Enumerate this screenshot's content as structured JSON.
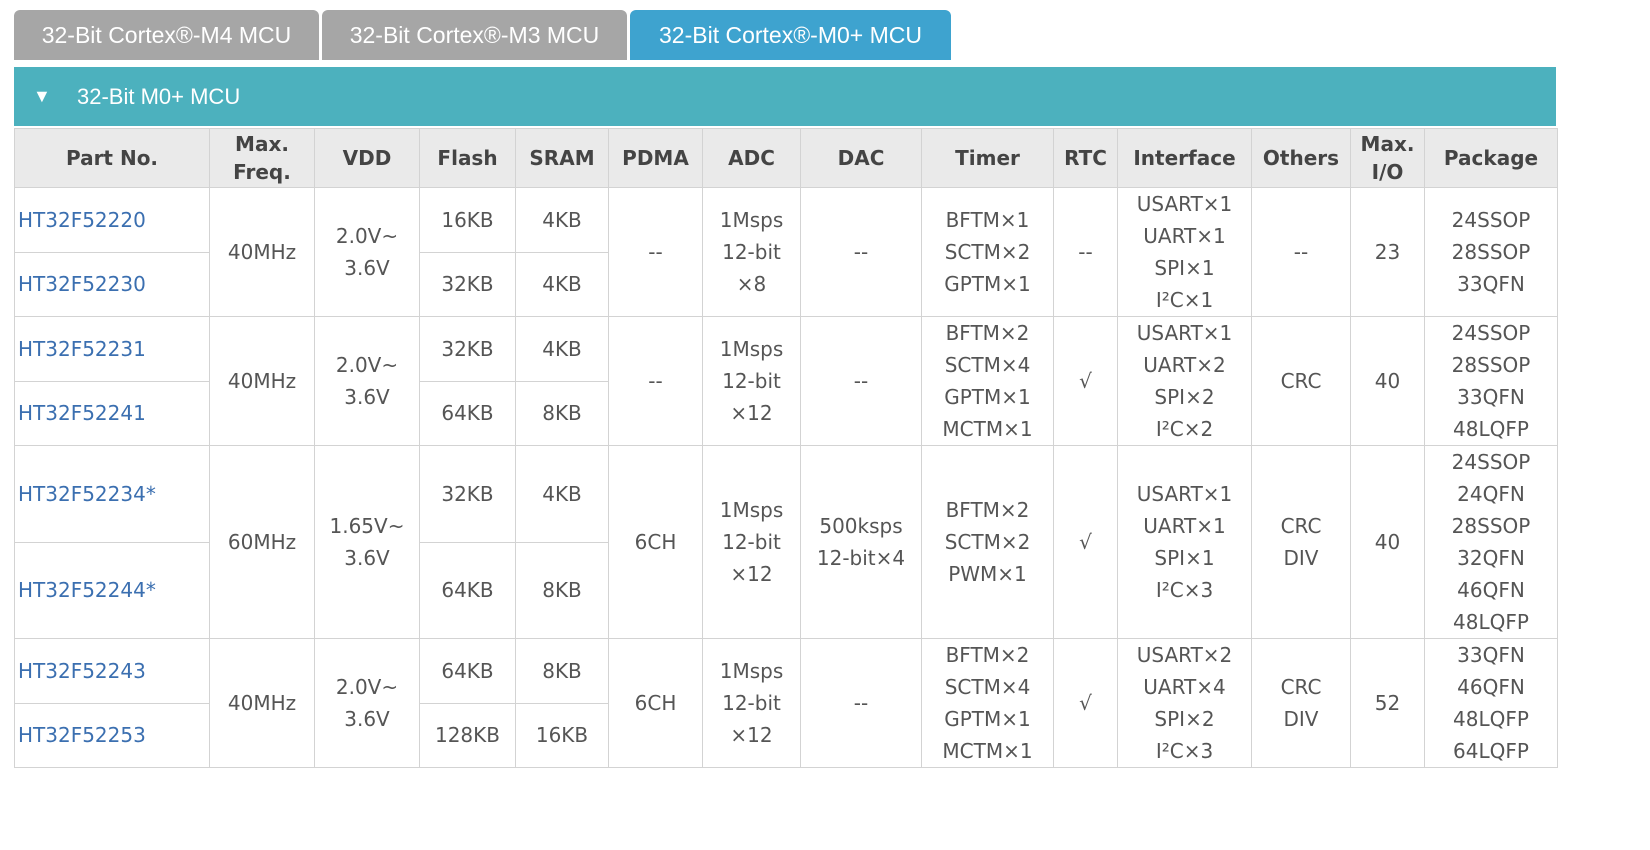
{
  "tabs": [
    {
      "label": "32-Bit Cortex®-M4 MCU",
      "active": false
    },
    {
      "label": "32-Bit Cortex®-M3 MCU",
      "active": false
    },
    {
      "label": "32-Bit Cortex®-M0+ MCU",
      "active": true
    }
  ],
  "section": {
    "icon": "triangle-down-icon",
    "title": "32-Bit M0+ MCU"
  },
  "colors": {
    "tab_active": "#3ea3cf",
    "tab_inactive": "#a6a6a6",
    "section_bar": "#4cb1be",
    "part_link": "#3b6fb0",
    "header_bg": "#eaeaea"
  },
  "table": {
    "headers": [
      "Part No.",
      "Max.\nFreq.",
      "VDD",
      "Flash",
      "SRAM",
      "PDMA",
      "ADC",
      "DAC",
      "Timer",
      "RTC",
      "Interface",
      "Others",
      "Max.\nI/O",
      "Package"
    ],
    "groups": [
      {
        "parts": [
          {
            "part": "HT32F52220",
            "flash": "16KB",
            "sram": "4KB"
          },
          {
            "part": "HT32F52230",
            "flash": "32KB",
            "sram": "4KB"
          }
        ],
        "freq": "40MHz",
        "vdd": "2.0V~\n3.6V",
        "pdma": "--",
        "adc": "1Msps\n12-bit\n×8",
        "dac": "--",
        "timer": "BFTM×1\nSCTM×2\nGPTM×1",
        "rtc": "--",
        "interface": "USART×1\nUART×1\nSPI×1\nI²C×1",
        "others": "--",
        "io": "23",
        "package": "24SSOP\n28SSOP\n33QFN"
      },
      {
        "parts": [
          {
            "part": "HT32F52231",
            "flash": "32KB",
            "sram": "4KB"
          },
          {
            "part": "HT32F52241",
            "flash": "64KB",
            "sram": "8KB"
          }
        ],
        "freq": "40MHz",
        "vdd": "2.0V~\n3.6V",
        "pdma": "--",
        "adc": "1Msps\n12-bit\n×12",
        "dac": "--",
        "timer": "BFTM×2\nSCTM×4\nGPTM×1\nMCTM×1",
        "rtc": "√",
        "interface": "USART×1\nUART×2\nSPI×2\nI²C×2",
        "others": "CRC",
        "io": "40",
        "package": "24SSOP\n28SSOP\n33QFN\n48LQFP"
      },
      {
        "parts": [
          {
            "part": "HT32F52234*",
            "flash": "32KB",
            "sram": "4KB"
          },
          {
            "part": "HT32F52244*",
            "flash": "64KB",
            "sram": "8KB"
          }
        ],
        "freq": "60MHz",
        "vdd": "1.65V~\n3.6V",
        "pdma": "6CH",
        "adc": "1Msps\n12-bit\n×12",
        "dac": "500ksps\n12-bit×4",
        "timer": "BFTM×2\nSCTM×2\nPWM×1",
        "rtc": "√",
        "interface": "USART×1\nUART×1\nSPI×1\nI²C×3",
        "others": "CRC\nDIV",
        "io": "40",
        "package": "24SSOP\n24QFN\n28SSOP\n32QFN\n46QFN\n48LQFP"
      },
      {
        "parts": [
          {
            "part": "HT32F52243",
            "flash": "64KB",
            "sram": "8KB"
          },
          {
            "part": "HT32F52253",
            "flash": "128KB",
            "sram": "16KB"
          }
        ],
        "freq": "40MHz",
        "vdd": "2.0V~\n3.6V",
        "pdma": "6CH",
        "adc": "1Msps\n12-bit\n×12",
        "dac": "--",
        "timer": "BFTM×2\nSCTM×4\nGPTM×1\nMCTM×1",
        "rtc": "√",
        "interface": "USART×2\nUART×4\nSPI×2\nI²C×3",
        "others": "CRC\nDIV",
        "io": "52",
        "package": "33QFN\n46QFN\n48LQFP\n64LQFP"
      }
    ]
  }
}
